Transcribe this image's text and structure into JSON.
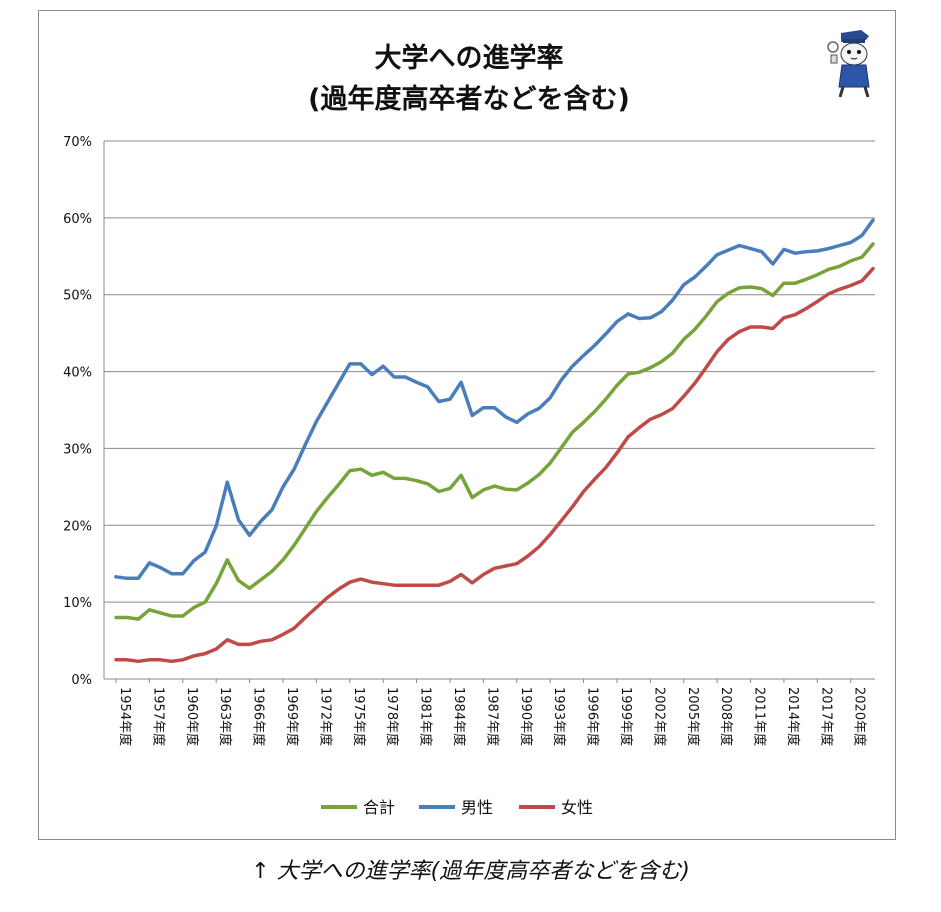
{
  "caption": "↑ 大学への進学率(過年度高卒者などを含む)",
  "mascot_icon": "cat-mascot-icon",
  "chart_data": {
    "type": "line",
    "title": [
      "大学への進学率",
      "(過年度高卒者などを含む)"
    ],
    "xlabel": "",
    "ylabel": "",
    "ylim": [
      0,
      70
    ],
    "ytick_step": 10,
    "ytick_suffix": "%",
    "grid": "horizontal",
    "legend": "bottom",
    "x": [
      1954,
      1955,
      1956,
      1957,
      1958,
      1959,
      1960,
      1961,
      1962,
      1963,
      1964,
      1965,
      1966,
      1967,
      1968,
      1969,
      1970,
      1971,
      1972,
      1973,
      1974,
      1975,
      1976,
      1977,
      1978,
      1979,
      1980,
      1981,
      1982,
      1983,
      1984,
      1985,
      1986,
      1987,
      1988,
      1989,
      1990,
      1991,
      1992,
      1993,
      1994,
      1995,
      1996,
      1997,
      1998,
      1999,
      2000,
      2001,
      2002,
      2003,
      2004,
      2005,
      2006,
      2007,
      2008,
      2009,
      2010,
      2011,
      2012,
      2013,
      2014,
      2015,
      2016,
      2017,
      2018,
      2019,
      2020,
      2021,
      2022
    ],
    "x_tick_labels": [
      "1954年度",
      "1957年度",
      "1960年度",
      "1963年度",
      "1966年度",
      "1969年度",
      "1972年度",
      "1975年度",
      "1978年度",
      "1981年度",
      "1984年度",
      "1987年度",
      "1990年度",
      "1993年度",
      "1996年度",
      "1999年度",
      "2002年度",
      "2005年度",
      "2008年度",
      "2011年度",
      "2014年度",
      "2017年度",
      "2020年度"
    ],
    "series": [
      {
        "name": "合計",
        "color": "#77a33b",
        "values": [
          8.0,
          8.0,
          7.8,
          9.0,
          8.6,
          8.2,
          8.2,
          9.3,
          10.0,
          12.4,
          15.5,
          12.8,
          11.8,
          12.9,
          14.0,
          15.5,
          17.4,
          19.6,
          21.8,
          23.6,
          25.3,
          27.1,
          27.3,
          26.5,
          26.9,
          26.1,
          26.1,
          25.8,
          25.4,
          24.4,
          24.8,
          26.5,
          23.6,
          24.6,
          25.1,
          24.7,
          24.6,
          25.5,
          26.6,
          28.1,
          30.1,
          32.1,
          33.4,
          34.8,
          36.4,
          38.2,
          39.7,
          39.9,
          40.5,
          41.3,
          42.4,
          44.2,
          45.5,
          47.2,
          49.1,
          50.2,
          50.9,
          51.0,
          50.8,
          49.9,
          51.5,
          51.5,
          52.0,
          52.6,
          53.3,
          53.7,
          54.4,
          54.9,
          56.6
        ]
      },
      {
        "name": "男性",
        "color": "#4a7ebb",
        "values": [
          13.3,
          13.1,
          13.1,
          15.1,
          14.5,
          13.7,
          13.7,
          15.4,
          16.5,
          19.9,
          25.6,
          20.7,
          18.7,
          20.5,
          22.0,
          25.0,
          27.3,
          30.5,
          33.5,
          36.0,
          38.5,
          41.0,
          41.0,
          39.6,
          40.7,
          39.3,
          39.3,
          38.6,
          38.0,
          36.1,
          36.4,
          38.6,
          34.3,
          35.3,
          35.3,
          34.1,
          33.4,
          34.5,
          35.2,
          36.6,
          38.9,
          40.7,
          42.1,
          43.4,
          44.9,
          46.5,
          47.5,
          46.9,
          47.0,
          47.8,
          49.3,
          51.3,
          52.3,
          53.7,
          55.2,
          55.8,
          56.4,
          56.0,
          55.6,
          54.0,
          55.9,
          55.4,
          55.6,
          55.7,
          56.0,
          56.4,
          56.8,
          57.7,
          59.7
        ]
      },
      {
        "name": "女性",
        "color": "#be4b48",
        "values": [
          2.5,
          2.5,
          2.3,
          2.5,
          2.5,
          2.3,
          2.5,
          3.0,
          3.3,
          3.9,
          5.1,
          4.5,
          4.5,
          4.9,
          5.1,
          5.8,
          6.6,
          8.0,
          9.3,
          10.6,
          11.7,
          12.6,
          13.0,
          12.6,
          12.4,
          12.2,
          12.2,
          12.2,
          12.2,
          12.2,
          12.7,
          13.6,
          12.5,
          13.6,
          14.4,
          14.7,
          15.0,
          16.0,
          17.2,
          18.8,
          20.6,
          22.4,
          24.4,
          26.0,
          27.5,
          29.4,
          31.5,
          32.7,
          33.8,
          34.4,
          35.2,
          36.8,
          38.5,
          40.5,
          42.6,
          44.2,
          45.2,
          45.8,
          45.8,
          45.6,
          47.0,
          47.4,
          48.2,
          49.1,
          50.1,
          50.7,
          51.2,
          51.8,
          53.4
        ]
      }
    ]
  }
}
